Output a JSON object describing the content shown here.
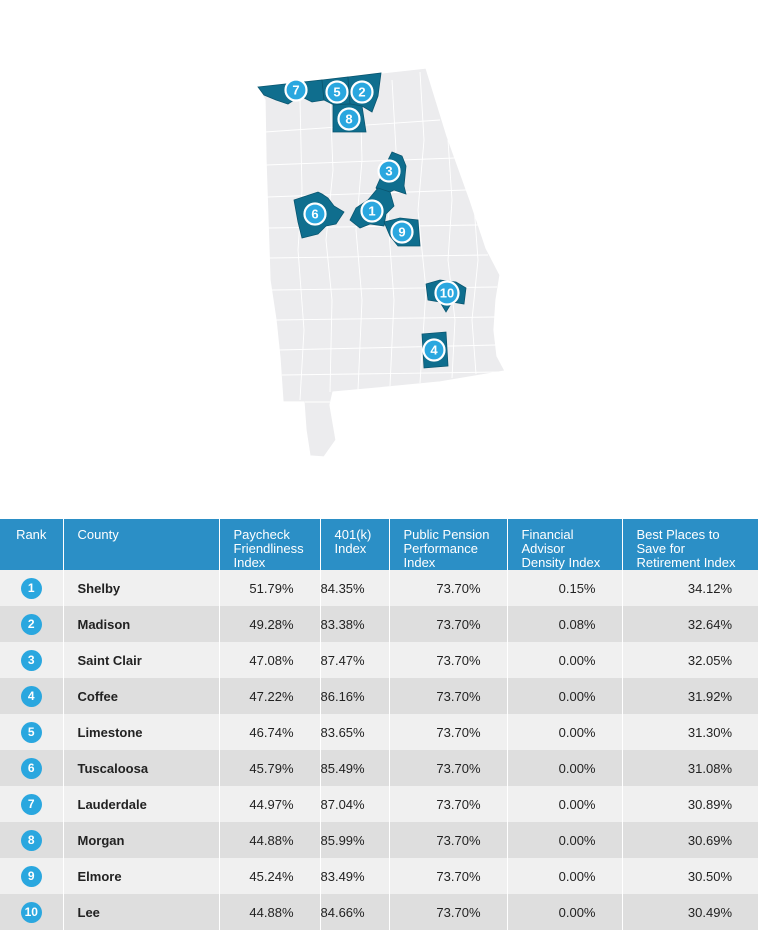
{
  "map": {
    "highlight_color": "#0f6e8e",
    "pin_color": "#2aa7df",
    "base_color": "#ececee",
    "pins": [
      "7",
      "5",
      "2",
      "8",
      "3",
      "6",
      "1",
      "9",
      "10",
      "4"
    ]
  },
  "table": {
    "header_color": "#2b8fc6",
    "headers": [
      [
        "Rank"
      ],
      [
        "County"
      ],
      [
        "Paycheck",
        "Friendliness",
        "Index"
      ],
      [
        "401(k)",
        "Index"
      ],
      [
        "Public Pension",
        "Performance",
        "Index"
      ],
      [
        "Financial",
        "Advisor",
        "Density Index"
      ],
      [
        "Best Places to",
        "Save for",
        "Retirement Index"
      ]
    ],
    "rows": [
      {
        "rank": "1",
        "county": "Shelby",
        "paycheck": "51.79%",
        "k401": "84.35%",
        "pension": "73.70%",
        "advisor": "0.15%",
        "best": "34.12%"
      },
      {
        "rank": "2",
        "county": "Madison",
        "paycheck": "49.28%",
        "k401": "83.38%",
        "pension": "73.70%",
        "advisor": "0.08%",
        "best": "32.64%"
      },
      {
        "rank": "3",
        "county": "Saint Clair",
        "paycheck": "47.08%",
        "k401": "87.47%",
        "pension": "73.70%",
        "advisor": "0.00%",
        "best": "32.05%"
      },
      {
        "rank": "4",
        "county": "Coffee",
        "paycheck": "47.22%",
        "k401": "86.16%",
        "pension": "73.70%",
        "advisor": "0.00%",
        "best": "31.92%"
      },
      {
        "rank": "5",
        "county": "Limestone",
        "paycheck": "46.74%",
        "k401": "83.65%",
        "pension": "73.70%",
        "advisor": "0.00%",
        "best": "31.30%"
      },
      {
        "rank": "6",
        "county": "Tuscaloosa",
        "paycheck": "45.79%",
        "k401": "85.49%",
        "pension": "73.70%",
        "advisor": "0.00%",
        "best": "31.08%"
      },
      {
        "rank": "7",
        "county": "Lauderdale",
        "paycheck": "44.97%",
        "k401": "87.04%",
        "pension": "73.70%",
        "advisor": "0.00%",
        "best": "30.89%"
      },
      {
        "rank": "8",
        "county": "Morgan",
        "paycheck": "44.88%",
        "k401": "85.99%",
        "pension": "73.70%",
        "advisor": "0.00%",
        "best": "30.69%"
      },
      {
        "rank": "9",
        "county": "Elmore",
        "paycheck": "45.24%",
        "k401": "83.49%",
        "pension": "73.70%",
        "advisor": "0.00%",
        "best": "30.50%"
      },
      {
        "rank": "10",
        "county": "Lee",
        "paycheck": "44.88%",
        "k401": "84.66%",
        "pension": "73.70%",
        "advisor": "0.00%",
        "best": "30.49%"
      }
    ]
  }
}
